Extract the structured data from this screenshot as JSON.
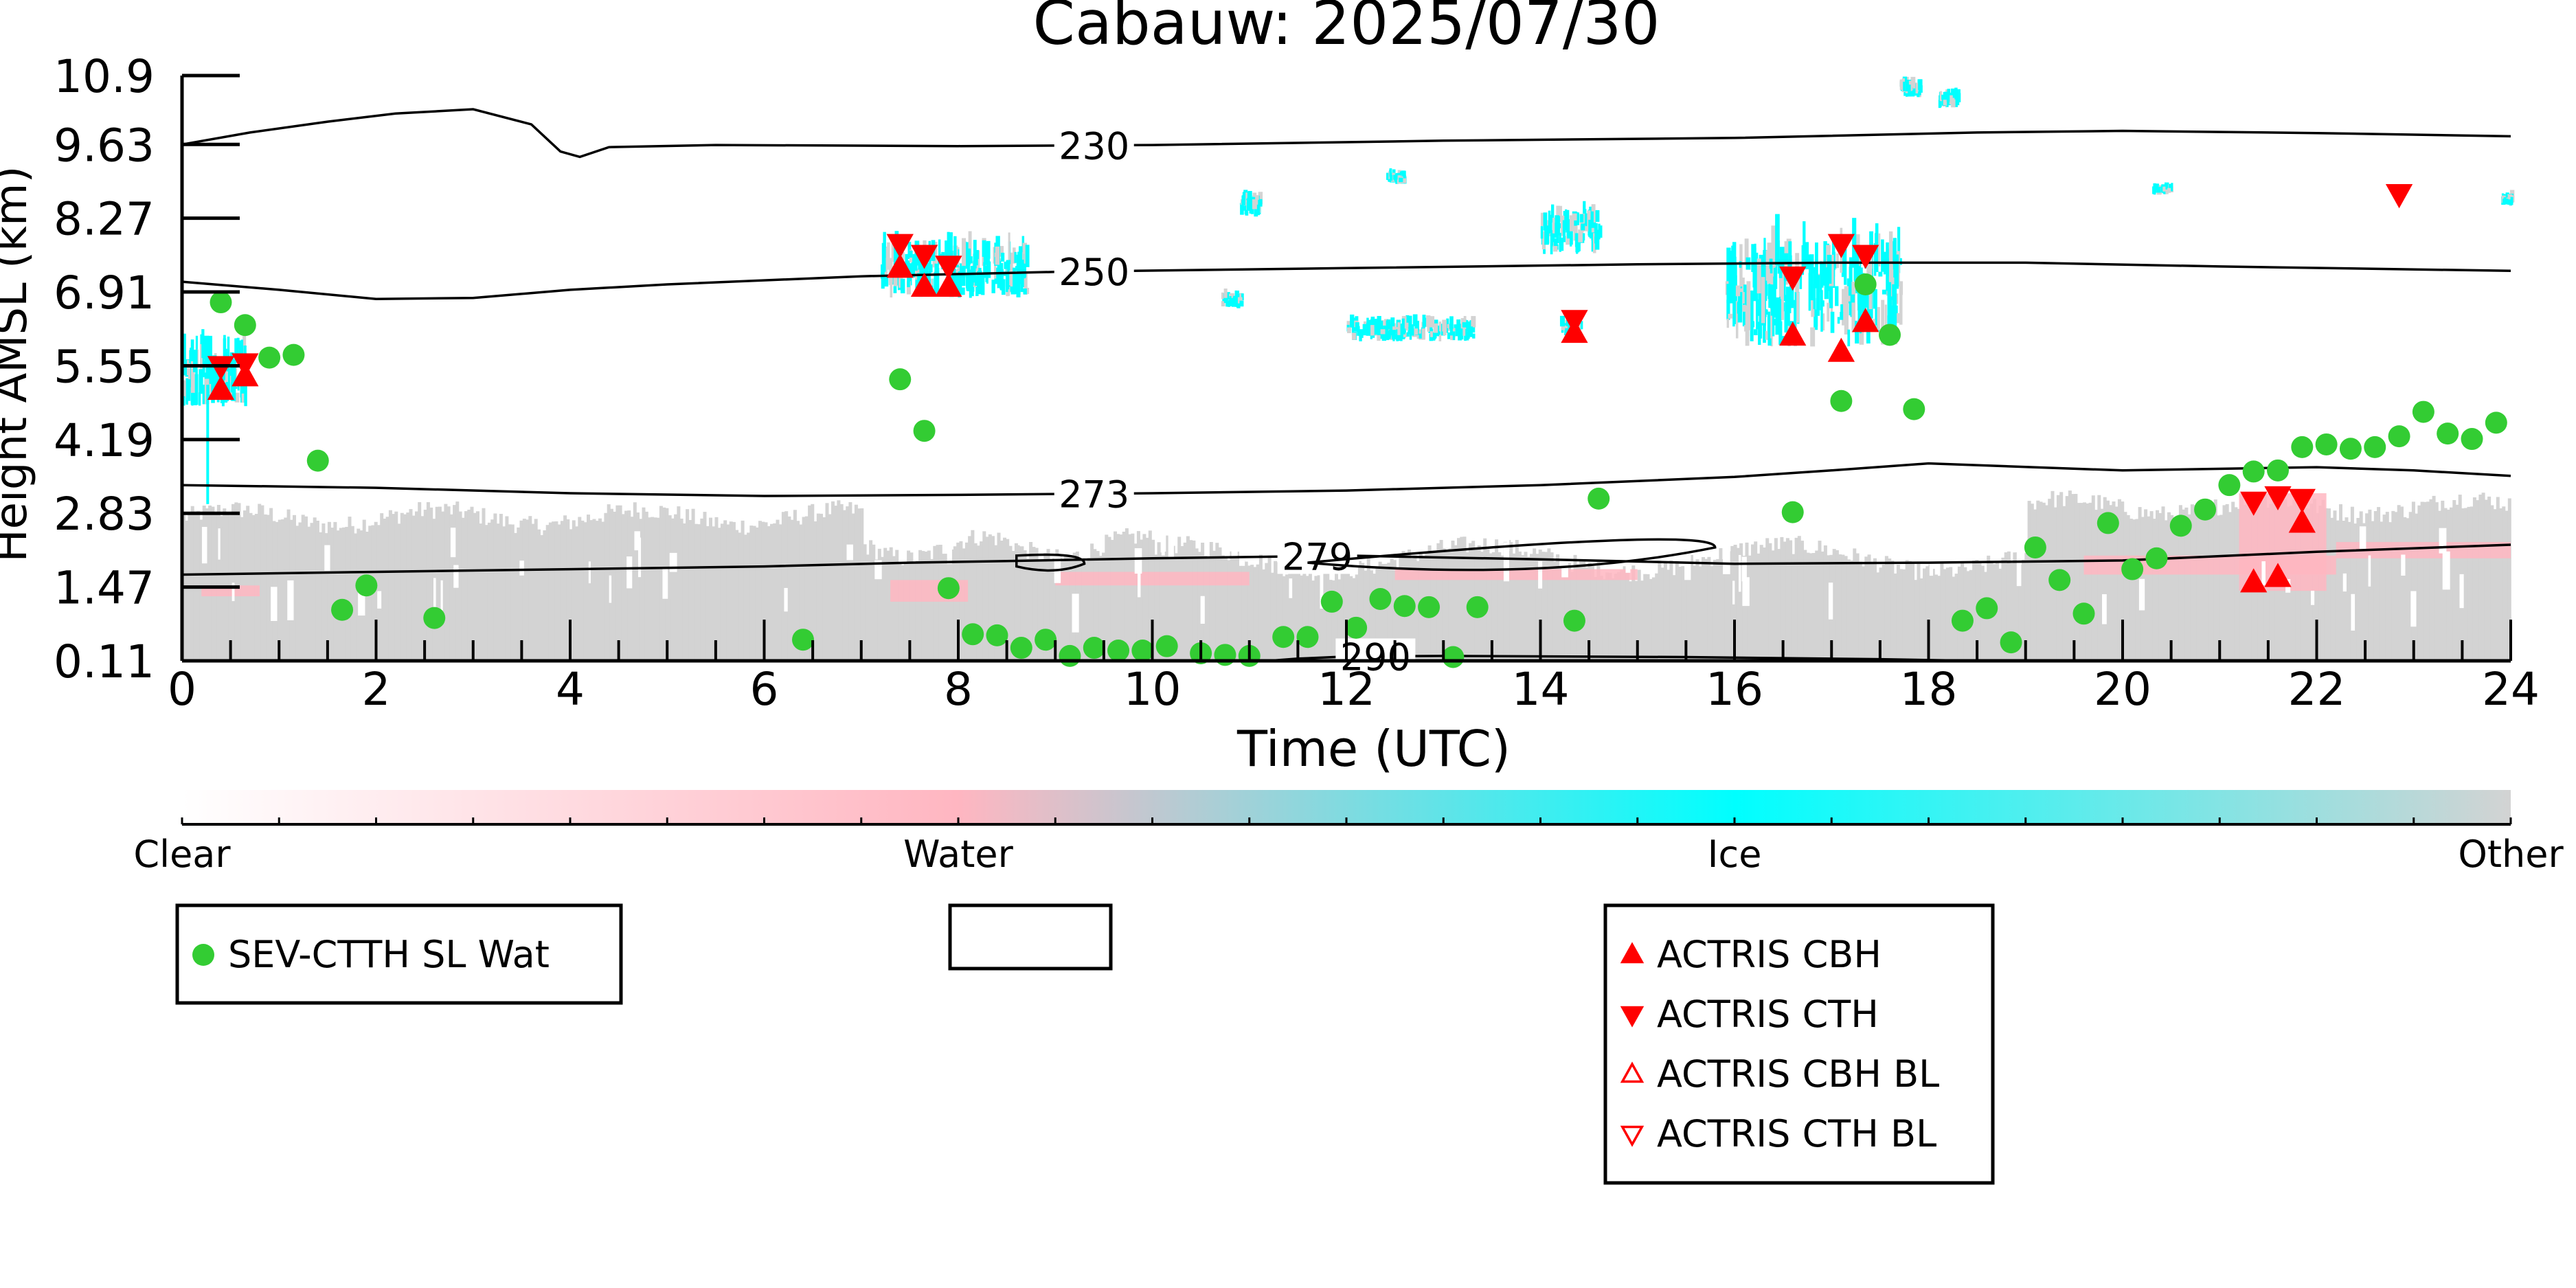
{
  "chart_data": {
    "type": "scatter",
    "title": "Cabauw: 2025/07/30",
    "xlabel": "Time (UTC)",
    "ylabel": "Height AMSL (km)",
    "xlim": [
      0,
      24
    ],
    "ylim": [
      0.11,
      10.9
    ],
    "xticks": [
      0,
      2,
      4,
      6,
      8,
      10,
      12,
      14,
      16,
      18,
      20,
      22,
      24
    ],
    "yticks": [
      "0.11",
      "1.47",
      "2.83",
      "4.19",
      "5.55",
      "6.91",
      "8.27",
      "9.63",
      "10.9"
    ],
    "colorbar": {
      "labels": [
        "Clear",
        "Water",
        "Ice",
        "Other"
      ],
      "colors": [
        "#ffffff",
        "#ffb6c1",
        "#00ffff",
        "#d3d3d3"
      ]
    },
    "contours": [
      {
        "label": "230",
        "label_x": 9.4,
        "points": [
          [
            0,
            9.63
          ],
          [
            0.7,
            9.85
          ],
          [
            1.5,
            10.05
          ],
          [
            2.2,
            10.2
          ],
          [
            3.0,
            10.28
          ],
          [
            3.6,
            10.0
          ],
          [
            3.9,
            9.5
          ],
          [
            4.1,
            9.4
          ],
          [
            4.4,
            9.58
          ],
          [
            5.5,
            9.62
          ],
          [
            8,
            9.6
          ],
          [
            10,
            9.62
          ],
          [
            13,
            9.7
          ],
          [
            16,
            9.75
          ],
          [
            18.5,
            9.85
          ],
          [
            20,
            9.88
          ],
          [
            22,
            9.84
          ],
          [
            24,
            9.78
          ]
        ]
      },
      {
        "label": "250",
        "label_x": 9.4,
        "points": [
          [
            0,
            7.1
          ],
          [
            1,
            6.95
          ],
          [
            2,
            6.78
          ],
          [
            3,
            6.8
          ],
          [
            4,
            6.95
          ],
          [
            5,
            7.05
          ],
          [
            7,
            7.2
          ],
          [
            9,
            7.28
          ],
          [
            12,
            7.35
          ],
          [
            15,
            7.42
          ],
          [
            17,
            7.45
          ],
          [
            19,
            7.45
          ],
          [
            21,
            7.38
          ],
          [
            24,
            7.3
          ]
        ]
      },
      {
        "label": "273",
        "label_x": 9.4,
        "points": [
          [
            0,
            3.35
          ],
          [
            2,
            3.3
          ],
          [
            4,
            3.2
          ],
          [
            6,
            3.15
          ],
          [
            8,
            3.17
          ],
          [
            10,
            3.2
          ],
          [
            12,
            3.25
          ],
          [
            14,
            3.35
          ],
          [
            16,
            3.5
          ],
          [
            17,
            3.62
          ],
          [
            18,
            3.75
          ],
          [
            20,
            3.62
          ],
          [
            22,
            3.68
          ],
          [
            23,
            3.62
          ],
          [
            24,
            3.52
          ]
        ]
      },
      {
        "label": "279",
        "label_x": 11.7,
        "points": [
          [
            0,
            1.7
          ],
          [
            2,
            1.75
          ],
          [
            4,
            1.8
          ],
          [
            6,
            1.85
          ],
          [
            7.5,
            1.92
          ],
          [
            8.5,
            1.95
          ],
          [
            10,
            2.0
          ],
          [
            12,
            2.05
          ],
          [
            14,
            1.98
          ],
          [
            16,
            1.9
          ],
          [
            18,
            1.92
          ],
          [
            20,
            1.96
          ],
          [
            22,
            2.12
          ],
          [
            24,
            2.25
          ]
        ]
      },
      {
        "label": "290",
        "label_x": 12.3,
        "points": [
          [
            11.2,
            0.11
          ],
          [
            11.5,
            0.15
          ],
          [
            12.0,
            0.19
          ],
          [
            13.0,
            0.2
          ],
          [
            15.5,
            0.18
          ],
          [
            17.5,
            0.14
          ],
          [
            18.5,
            0.11
          ]
        ]
      }
    ],
    "series": [
      {
        "name": "SEV-CTTH SL Wat",
        "color": "#33cc33",
        "marker": "circle",
        "points": [
          [
            0.4,
            6.72
          ],
          [
            0.65,
            6.3
          ],
          [
            0.9,
            5.7
          ],
          [
            1.15,
            5.75
          ],
          [
            1.4,
            3.8
          ],
          [
            1.65,
            1.05
          ],
          [
            1.9,
            1.5
          ],
          [
            2.6,
            0.9
          ],
          [
            6.4,
            0.5
          ],
          [
            7.4,
            5.3
          ],
          [
            7.65,
            4.35
          ],
          [
            7.9,
            1.45
          ],
          [
            8.15,
            0.6
          ],
          [
            8.4,
            0.58
          ],
          [
            8.65,
            0.35
          ],
          [
            8.9,
            0.5
          ],
          [
            9.15,
            0.2
          ],
          [
            9.4,
            0.35
          ],
          [
            9.65,
            0.3
          ],
          [
            9.9,
            0.3
          ],
          [
            10.15,
            0.38
          ],
          [
            10.5,
            0.25
          ],
          [
            10.75,
            0.22
          ],
          [
            11,
            0.2
          ],
          [
            11.35,
            0.55
          ],
          [
            11.6,
            0.55
          ],
          [
            11.85,
            1.2
          ],
          [
            12.1,
            0.72
          ],
          [
            12.35,
            1.25
          ],
          [
            12.6,
            1.12
          ],
          [
            12.85,
            1.1
          ],
          [
            13.1,
            0.18
          ],
          [
            13.35,
            1.1
          ],
          [
            14.35,
            0.85
          ],
          [
            14.6,
            3.1
          ],
          [
            16.6,
            2.85
          ],
          [
            17.1,
            4.9
          ],
          [
            17.35,
            7.05
          ],
          [
            17.6,
            6.12
          ],
          [
            17.85,
            4.75
          ],
          [
            18.35,
            0.85
          ],
          [
            18.6,
            1.08
          ],
          [
            18.85,
            0.45
          ],
          [
            19.1,
            2.2
          ],
          [
            19.35,
            1.6
          ],
          [
            19.6,
            0.98
          ],
          [
            19.85,
            2.65
          ],
          [
            20.1,
            1.8
          ],
          [
            20.35,
            2.0
          ],
          [
            20.6,
            2.6
          ],
          [
            20.85,
            2.9
          ],
          [
            21.1,
            3.35
          ],
          [
            21.35,
            3.6
          ],
          [
            21.6,
            3.62
          ],
          [
            21.85,
            4.05
          ],
          [
            22.1,
            4.1
          ],
          [
            22.35,
            4.02
          ],
          [
            22.6,
            4.05
          ],
          [
            22.85,
            4.25
          ],
          [
            23.1,
            4.7
          ],
          [
            23.35,
            4.3
          ],
          [
            23.6,
            4.2
          ],
          [
            23.85,
            4.5
          ]
        ]
      },
      {
        "name": "ACTRIS CBH",
        "color": "#ff0000",
        "marker": "triangle-up",
        "points": [
          [
            0.4,
            5.1
          ],
          [
            0.65,
            5.35
          ],
          [
            7.4,
            7.35
          ],
          [
            7.65,
            7.0
          ],
          [
            7.9,
            7.0
          ],
          [
            14.35,
            6.15
          ],
          [
            16.6,
            6.1
          ],
          [
            17.1,
            5.8
          ],
          [
            17.35,
            6.35
          ],
          [
            21.35,
            1.55
          ],
          [
            21.6,
            1.65
          ],
          [
            21.85,
            2.65
          ]
        ]
      },
      {
        "name": "ACTRIS CTH",
        "color": "#ff0000",
        "marker": "triangle-down",
        "points": [
          [
            0.4,
            5.55
          ],
          [
            0.65,
            5.6
          ],
          [
            7.4,
            7.8
          ],
          [
            7.65,
            7.6
          ],
          [
            7.9,
            7.4
          ],
          [
            14.35,
            6.4
          ],
          [
            16.6,
            7.2
          ],
          [
            17.1,
            7.8
          ],
          [
            17.35,
            7.6
          ],
          [
            21.35,
            3.05
          ],
          [
            21.6,
            3.15
          ],
          [
            21.85,
            3.1
          ],
          [
            22.85,
            8.72
          ]
        ]
      },
      {
        "name": "ACTRIS CBH BL",
        "color": "#ff0000",
        "marker": "triangle-up-open",
        "points": []
      },
      {
        "name": "ACTRIS CTH BL",
        "color": "#ff0000",
        "marker": "triangle-down-open",
        "points": []
      }
    ]
  }
}
